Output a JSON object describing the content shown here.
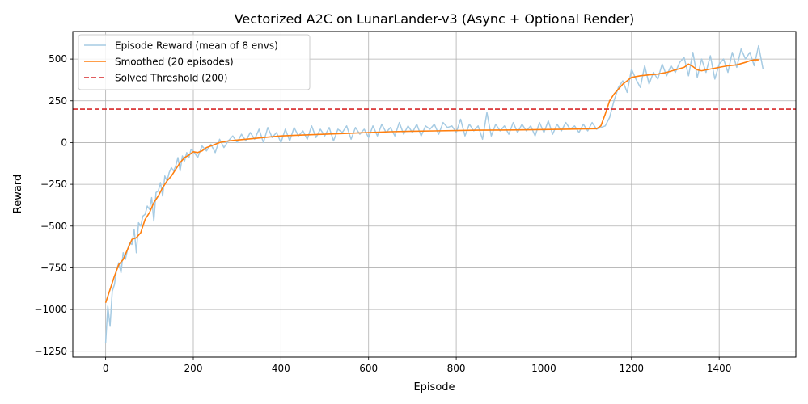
{
  "chart_data": {
    "type": "line",
    "title": "Vectorized A2C on LunarLander-v3 (Async + Optional Render)",
    "xlabel": "Episode",
    "ylabel": "Reward",
    "xlim": [
      -75,
      1575
    ],
    "ylim": [
      -1285,
      665
    ],
    "xticks": [
      0,
      200,
      400,
      600,
      800,
      1000,
      1200,
      1400
    ],
    "yticks": [
      -1250,
      -1000,
      -750,
      -500,
      -250,
      0,
      250,
      500
    ],
    "grid": true,
    "legend_position": "top-left",
    "series": [
      {
        "name": "Episode Reward (mean of 8 envs)",
        "color": "#a6cbe3",
        "style": "solid",
        "x": [
          0,
          5,
          10,
          15,
          20,
          25,
          30,
          35,
          40,
          45,
          50,
          55,
          60,
          65,
          70,
          75,
          80,
          85,
          90,
          95,
          100,
          105,
          110,
          115,
          120,
          125,
          130,
          135,
          140,
          145,
          150,
          155,
          160,
          165,
          170,
          175,
          180,
          185,
          190,
          195,
          200,
          210,
          220,
          230,
          240,
          250,
          260,
          270,
          280,
          290,
          300,
          310,
          320,
          330,
          340,
          350,
          360,
          370,
          380,
          390,
          400,
          410,
          420,
          430,
          440,
          450,
          460,
          470,
          480,
          490,
          500,
          510,
          520,
          530,
          540,
          550,
          560,
          570,
          580,
          590,
          600,
          610,
          620,
          630,
          640,
          650,
          660,
          670,
          680,
          690,
          700,
          710,
          720,
          730,
          740,
          750,
          760,
          770,
          780,
          790,
          800,
          810,
          820,
          830,
          840,
          850,
          860,
          870,
          880,
          890,
          900,
          910,
          920,
          930,
          940,
          950,
          960,
          970,
          980,
          990,
          1000,
          1010,
          1020,
          1030,
          1040,
          1050,
          1060,
          1070,
          1080,
          1090,
          1100,
          1110,
          1120,
          1130,
          1140,
          1150,
          1160,
          1170,
          1180,
          1190,
          1200,
          1210,
          1220,
          1230,
          1240,
          1250,
          1260,
          1270,
          1280,
          1290,
          1300,
          1310,
          1320,
          1330,
          1340,
          1350,
          1360,
          1370,
          1380,
          1390,
          1400,
          1410,
          1420,
          1430,
          1440,
          1450,
          1460,
          1470,
          1480,
          1490,
          1500
        ],
        "y": [
          -1200,
          -980,
          -1100,
          -890,
          -850,
          -760,
          -720,
          -780,
          -660,
          -700,
          -640,
          -600,
          -610,
          -520,
          -660,
          -480,
          -500,
          -440,
          -430,
          -380,
          -400,
          -330,
          -470,
          -300,
          -290,
          -240,
          -320,
          -200,
          -230,
          -180,
          -150,
          -170,
          -140,
          -90,
          -170,
          -80,
          -110,
          -60,
          -90,
          -40,
          -50,
          -90,
          -20,
          -50,
          -10,
          -60,
          20,
          -30,
          10,
          40,
          0,
          50,
          10,
          60,
          20,
          80,
          0,
          90,
          30,
          60,
          0,
          80,
          10,
          90,
          40,
          70,
          20,
          100,
          30,
          80,
          40,
          90,
          10,
          80,
          60,
          100,
          20,
          90,
          50,
          80,
          30,
          100,
          40,
          110,
          60,
          90,
          40,
          120,
          50,
          100,
          60,
          110,
          40,
          100,
          80,
          110,
          50,
          120,
          90,
          100,
          60,
          140,
          40,
          110,
          70,
          100,
          20,
          180,
          40,
          110,
          70,
          100,
          50,
          120,
          60,
          110,
          70,
          100,
          40,
          120,
          60,
          130,
          50,
          110,
          70,
          120,
          80,
          100,
          60,
          110,
          70,
          120,
          80,
          90,
          100,
          150,
          250,
          330,
          370,
          300,
          440,
          380,
          330,
          460,
          350,
          420,
          380,
          470,
          400,
          460,
          420,
          480,
          510,
          400,
          540,
          390,
          500,
          420,
          520,
          380,
          470,
          500,
          420,
          540,
          450,
          560,
          500,
          540,
          460,
          580,
          440
        ]
      },
      {
        "name": "Smoothed (20 episodes)",
        "color": "#ff7f0e",
        "style": "solid",
        "x": [
          0,
          10,
          20,
          30,
          40,
          50,
          60,
          70,
          80,
          90,
          100,
          110,
          120,
          130,
          140,
          150,
          160,
          170,
          180,
          190,
          200,
          210,
          220,
          230,
          240,
          250,
          260,
          280,
          300,
          320,
          340,
          360,
          380,
          400,
          450,
          500,
          550,
          600,
          650,
          700,
          750,
          800,
          850,
          900,
          950,
          1000,
          1050,
          1100,
          1120,
          1130,
          1140,
          1150,
          1160,
          1170,
          1180,
          1190,
          1200,
          1220,
          1240,
          1260,
          1280,
          1300,
          1320,
          1330,
          1340,
          1350,
          1360,
          1380,
          1400,
          1420,
          1440,
          1460,
          1470,
          1480,
          1490
        ],
        "y": [
          -960,
          -880,
          -800,
          -730,
          -700,
          -640,
          -580,
          -570,
          -540,
          -460,
          -420,
          -360,
          -320,
          -270,
          -230,
          -200,
          -160,
          -120,
          -90,
          -75,
          -55,
          -60,
          -50,
          -30,
          -20,
          -10,
          0,
          10,
          15,
          20,
          25,
          30,
          35,
          40,
          45,
          50,
          55,
          60,
          65,
          68,
          70,
          72,
          74,
          75,
          76,
          78,
          80,
          82,
          83,
          100,
          170,
          250,
          290,
          320,
          350,
          370,
          390,
          400,
          405,
          410,
          420,
          435,
          450,
          470,
          455,
          435,
          430,
          440,
          450,
          460,
          465,
          480,
          490,
          495,
          495
        ]
      },
      {
        "name": "Solved Threshold (200)",
        "color": "#d62728",
        "style": "dashed",
        "x": [
          -75,
          1575
        ],
        "y": [
          200,
          200
        ]
      }
    ]
  }
}
